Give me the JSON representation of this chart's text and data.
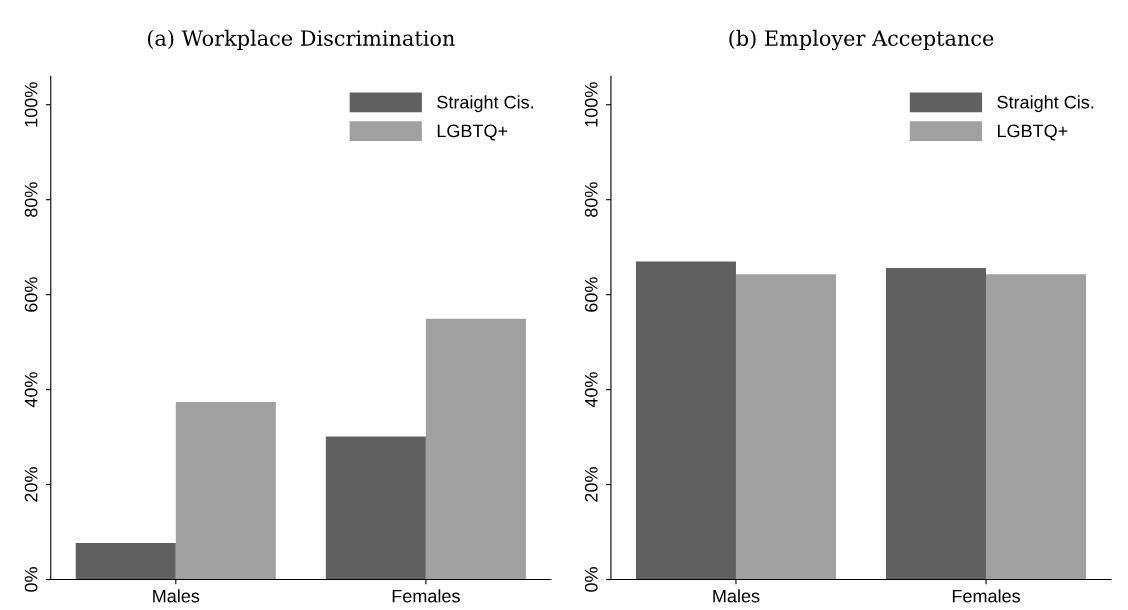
{
  "chart_data": [
    {
      "type": "bar",
      "title": "(a) Workplace Discrimination",
      "categories": [
        "Males",
        "Females"
      ],
      "series": [
        {
          "name": "Straight Cis.",
          "color": "#606060",
          "values": [
            7.7,
            30.1
          ]
        },
        {
          "name": "LGBTQ+",
          "color": "#a0a0a0",
          "values": [
            37.4,
            54.9
          ]
        }
      ],
      "ylim": [
        0,
        106
      ],
      "yticks": [
        {
          "value": 0,
          "label": "0%"
        },
        {
          "value": 20,
          "label": "20%"
        },
        {
          "value": 40,
          "label": "40%"
        },
        {
          "value": 60,
          "label": "60%"
        },
        {
          "value": 80,
          "label": "80%"
        },
        {
          "value": 100,
          "label": "100%"
        }
      ],
      "grid": false,
      "legend": "top right"
    },
    {
      "type": "bar",
      "title": "(b) Employer Acceptance",
      "categories": [
        "Males",
        "Females"
      ],
      "series": [
        {
          "name": "Straight Cis.",
          "color": "#606060",
          "values": [
            67.0,
            65.6
          ]
        },
        {
          "name": "LGBTQ+",
          "color": "#a0a0a0",
          "values": [
            64.3,
            64.3
          ]
        }
      ],
      "ylim": [
        0,
        106
      ],
      "yticks": [
        {
          "value": 0,
          "label": "0%"
        },
        {
          "value": 20,
          "label": "20%"
        },
        {
          "value": 40,
          "label": "40%"
        },
        {
          "value": 60,
          "label": "60%"
        },
        {
          "value": 80,
          "label": "80%"
        },
        {
          "value": 100,
          "label": "100%"
        }
      ],
      "grid": false,
      "legend": "top right"
    }
  ]
}
